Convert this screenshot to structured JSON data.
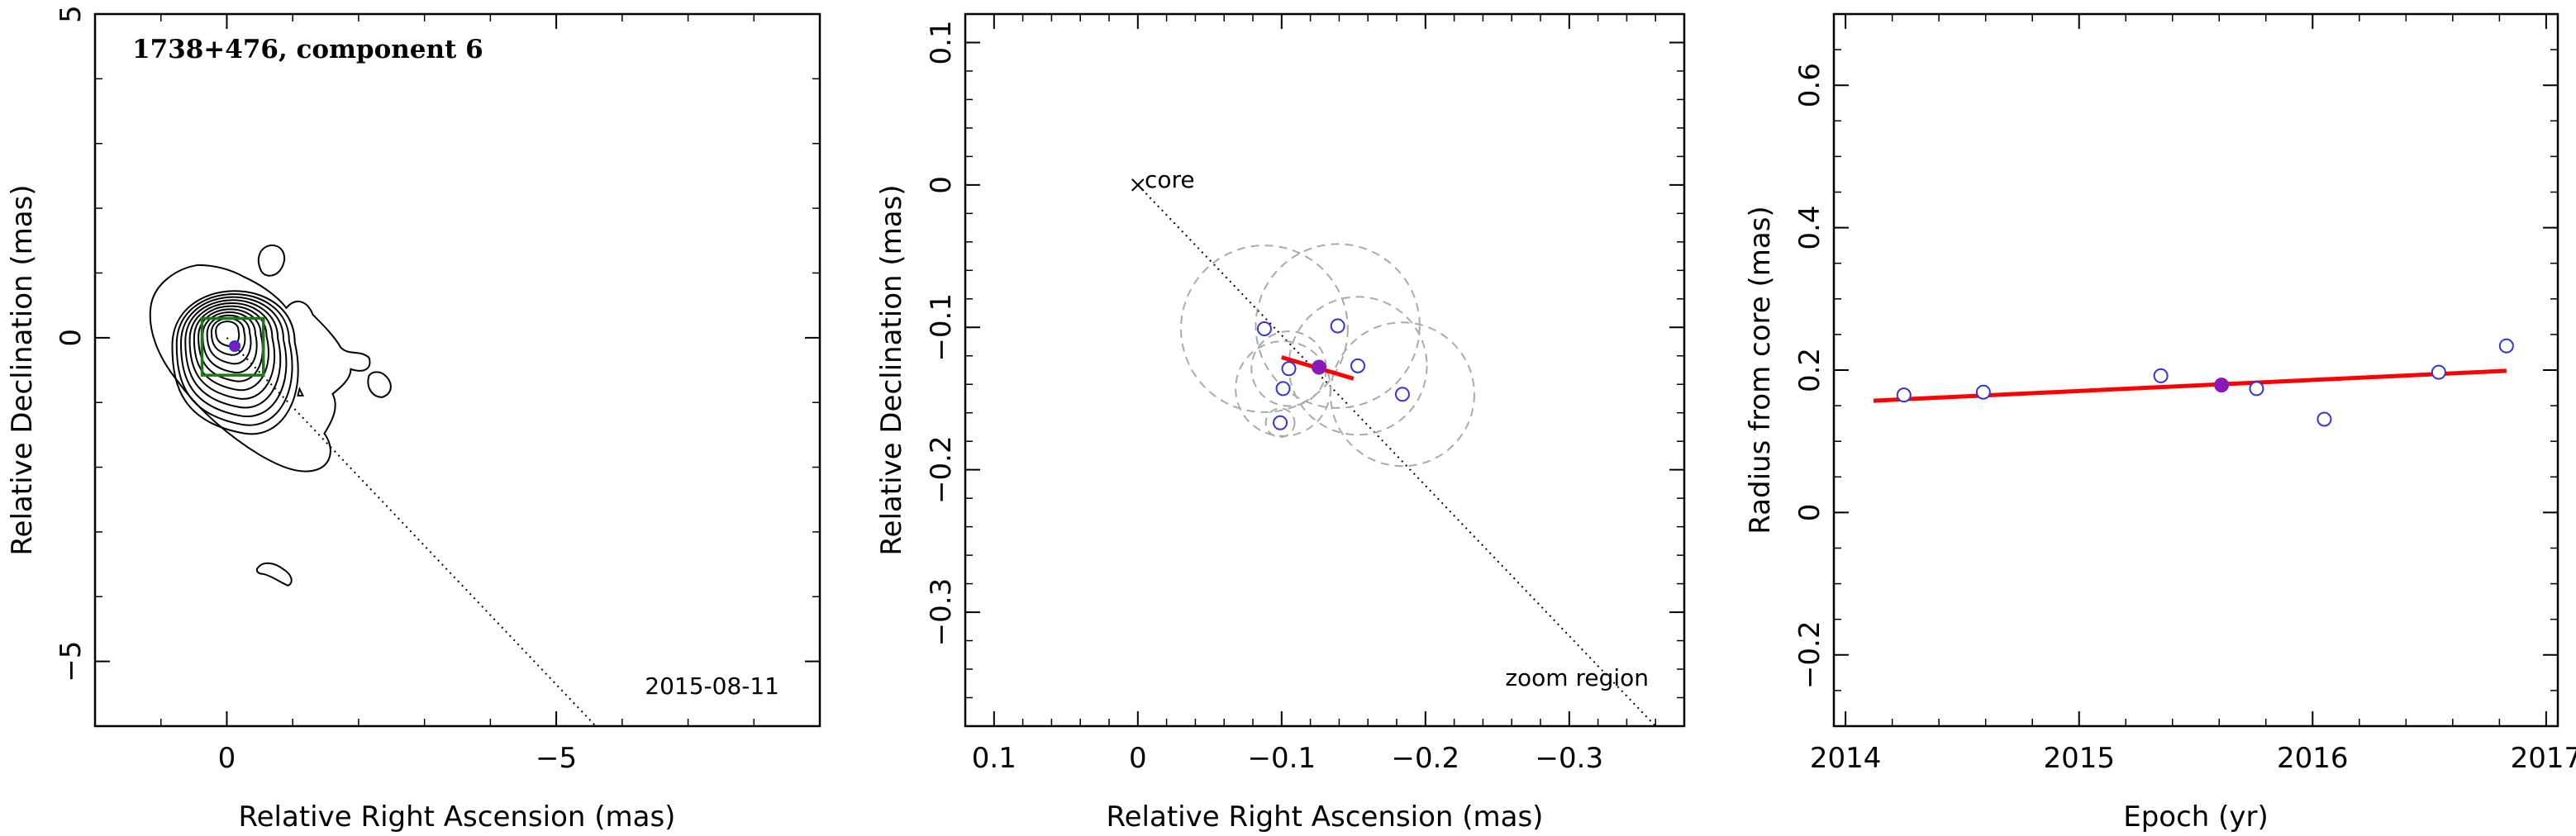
{
  "colors": {
    "frame": "#000000",
    "fit_line": "#ff0000",
    "observation_marker": "#3333dd",
    "current_epoch_marker": "#8a1ab8",
    "error_circle": "#aaaaaa",
    "component_box": "#1a7a1a"
  },
  "chart_data": [
    {
      "type": "contour",
      "title": "1738+476, component 6",
      "date_label": "2015-08-11",
      "xlabel": "Relative Right Ascension (mas)",
      "ylabel": "Relative Declination (mas)",
      "xlim": [
        2,
        -9
      ],
      "ylim": [
        -6,
        5
      ],
      "xticks": [
        0,
        -5
      ],
      "xtick_labels": [
        "0",
        "−5"
      ],
      "yticks": [
        -5,
        0,
        5
      ],
      "ytick_labels": [
        "−5",
        "0",
        "5"
      ],
      "contour_center": [
        0,
        0
      ],
      "contour_levels": 11,
      "component": {
        "x": -0.12,
        "y": -0.13
      },
      "zoom_box": {
        "x0": 0.2,
        "x1": -0.38,
        "y0": -0.4,
        "y1": 0.12
      },
      "jet_direction_line": [
        [
          0,
          0
        ],
        [
          -5.6,
          -6
        ]
      ]
    },
    {
      "type": "scatter",
      "title": "",
      "annotations": [
        "core",
        "zoom region"
      ],
      "xlabel": "Relative Right Ascension (mas)",
      "ylabel": "Relative Declination (mas)",
      "xlim": [
        0.12,
        -0.38
      ],
      "ylim": [
        -0.38,
        0.12
      ],
      "xticks": [
        0.1,
        0,
        -0.1,
        -0.2,
        -0.3
      ],
      "xtick_labels": [
        "0.1",
        "0",
        "−0.1",
        "−0.2",
        "−0.3"
      ],
      "yticks": [
        -0.3,
        -0.2,
        -0.1,
        0,
        0.1
      ],
      "ytick_labels": [
        "−0.3",
        "−0.2",
        "−0.1",
        "0",
        "0.1"
      ],
      "core": {
        "x": 0,
        "y": 0
      },
      "jet_direction_line": [
        [
          0,
          0
        ],
        [
          -0.36,
          -0.38
        ]
      ],
      "observations": [
        {
          "x": -0.088,
          "y": -0.101,
          "r": 0.058
        },
        {
          "x": -0.105,
          "y": -0.129,
          "r": 0.026
        },
        {
          "x": -0.139,
          "y": -0.099,
          "r": 0.057
        },
        {
          "x": -0.153,
          "y": -0.127,
          "r": 0.048
        },
        {
          "x": -0.101,
          "y": -0.143,
          "r": 0.033
        },
        {
          "x": -0.184,
          "y": -0.147,
          "r": 0.05
        },
        {
          "x": -0.099,
          "y": -0.167,
          "r": 0.01
        }
      ],
      "current_epoch": {
        "x": -0.126,
        "y": -0.128
      },
      "fit_line": [
        [
          -0.1,
          -0.121
        ],
        [
          -0.15,
          -0.136
        ]
      ]
    },
    {
      "type": "scatter",
      "title": "",
      "xlabel": "Epoch (yr)",
      "ylabel": "Radius from core (mas)",
      "xlim": [
        2013.95,
        2017.05
      ],
      "ylim": [
        -0.3,
        0.7
      ],
      "xticks": [
        2014,
        2015,
        2016,
        2017
      ],
      "xtick_labels": [
        "2014",
        "2015",
        "2016",
        "2017"
      ],
      "yticks": [
        -0.2,
        0,
        0.2,
        0.4,
        0.6
      ],
      "ytick_labels": [
        "−0.2",
        "0",
        "0.2",
        "0.4",
        "0.6"
      ],
      "observations": [
        {
          "x": 2014.25,
          "y": 0.165
        },
        {
          "x": 2014.59,
          "y": 0.169
        },
        {
          "x": 2015.35,
          "y": 0.192
        },
        {
          "x": 2015.76,
          "y": 0.174
        },
        {
          "x": 2016.05,
          "y": 0.131
        },
        {
          "x": 2016.54,
          "y": 0.197
        },
        {
          "x": 2016.83,
          "y": 0.234
        }
      ],
      "current_epoch": {
        "x": 2015.61,
        "y": 0.179
      },
      "fit_line": [
        [
          2014.12,
          0.157
        ],
        [
          2016.83,
          0.199
        ]
      ]
    }
  ]
}
